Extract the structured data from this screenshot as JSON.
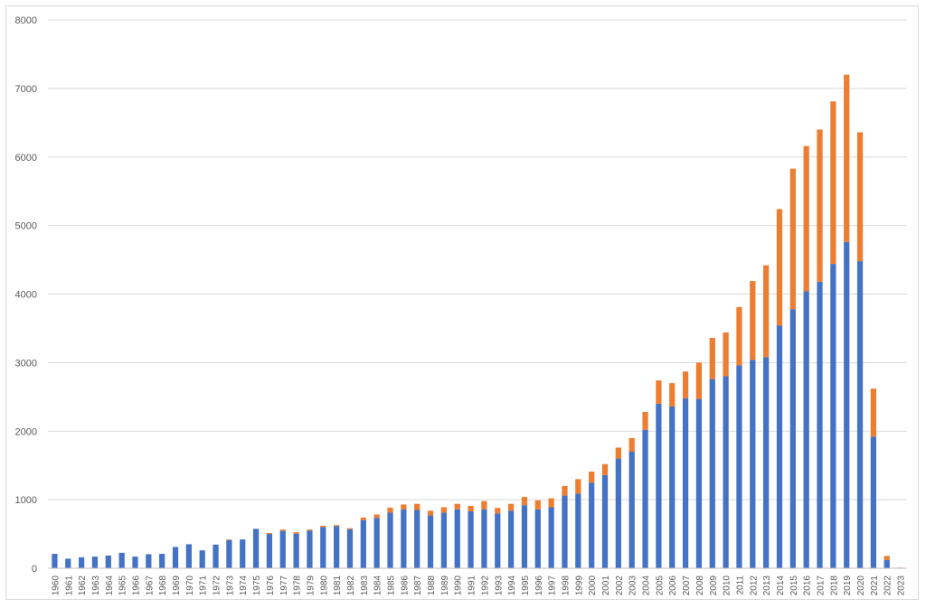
{
  "chart_data": {
    "type": "bar",
    "stacked": true,
    "title": "",
    "xlabel": "",
    "ylabel": "",
    "ylim": [
      0,
      8000
    ],
    "yticks": [
      0,
      1000,
      2000,
      3000,
      4000,
      5000,
      6000,
      7000,
      8000
    ],
    "grid": true,
    "legend": "none",
    "categories": [
      "1960",
      "1961",
      "1962",
      "1963",
      "1964",
      "1965",
      "1966",
      "1967",
      "1968",
      "1969",
      "1970",
      "1971",
      "1972",
      "1973",
      "1974",
      "1975",
      "1976",
      "1977",
      "1978",
      "1979",
      "1980",
      "1981",
      "1982",
      "1983",
      "1984",
      "1985",
      "1986",
      "1987",
      "1988",
      "1989",
      "1990",
      "1991",
      "1992",
      "1993",
      "1994",
      "1995",
      "1996",
      "1997",
      "1998",
      "1999",
      "2000",
      "2001",
      "2002",
      "2003",
      "2004",
      "2005",
      "2006",
      "2007",
      "2008",
      "2009",
      "2010",
      "2011",
      "2012",
      "2013",
      "2014",
      "2015",
      "2016",
      "2017",
      "2018",
      "2019",
      "2020",
      "2021",
      "2022",
      "2023"
    ],
    "series": [
      {
        "color": "#4472c4",
        "values": [
          210,
          140,
          160,
          170,
          185,
          225,
          170,
          205,
          210,
          310,
          350,
          260,
          345,
          410,
          420,
          575,
          500,
          545,
          505,
          550,
          600,
          615,
          570,
          700,
          735,
          810,
          860,
          850,
          770,
          810,
          860,
          830,
          860,
          800,
          840,
          920,
          860,
          890,
          1060,
          1090,
          1250,
          1360,
          1600,
          1700,
          2020,
          2400,
          2360,
          2480,
          2470,
          2760,
          2800,
          2960,
          3040,
          3080,
          3540,
          3780,
          4040,
          4180,
          4440,
          4760,
          4480,
          1920,
          120,
          5
        ]
      },
      {
        "color": "#ed7d31",
        "values": [
          0,
          0,
          0,
          0,
          0,
          0,
          0,
          0,
          0,
          0,
          0,
          0,
          0,
          10,
          0,
          0,
          15,
          20,
          20,
          15,
          20,
          15,
          15,
          40,
          50,
          75,
          70,
          90,
          70,
          80,
          80,
          80,
          120,
          80,
          100,
          120,
          130,
          130,
          140,
          210,
          160,
          160,
          160,
          200,
          260,
          340,
          340,
          390,
          530,
          600,
          640,
          850,
          1150,
          1340,
          1700,
          2050,
          2120,
          2220,
          2370,
          2440,
          1880,
          700,
          60,
          5
        ]
      }
    ]
  }
}
